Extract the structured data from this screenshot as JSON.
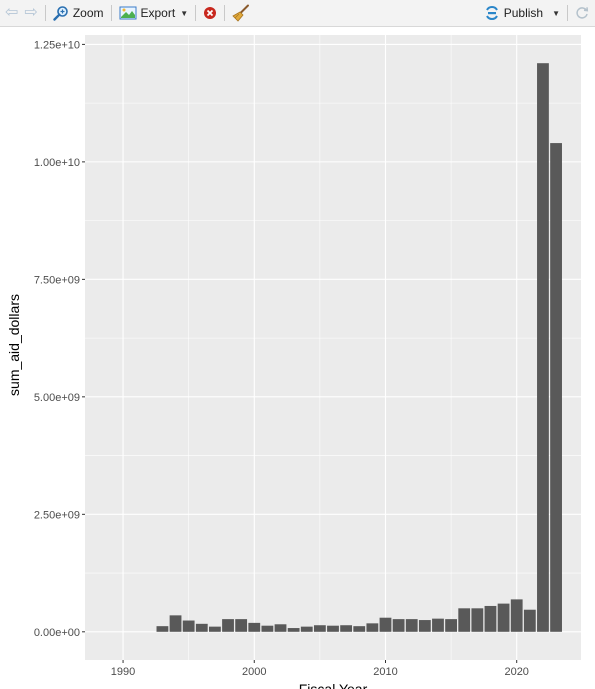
{
  "toolbar": {
    "zoom_label": "Zoom",
    "export_label": "Export",
    "publish_label": "Publish",
    "icons": [
      "arrow-left-icon",
      "arrow-right-icon",
      "zoom-icon",
      "export-icon",
      "remove-plot-icon",
      "broom-icon",
      "publish-icon",
      "refresh-icon"
    ]
  },
  "chart_data": {
    "type": "bar",
    "xlabel": "Fiscal Year",
    "ylabel": "sum_aid_dollars",
    "xlim": [
      1987.1,
      2024.9
    ],
    "ylim": [
      -600000000,
      12700000000
    ],
    "x_ticks": [
      1990,
      2000,
      2010,
      2020
    ],
    "x_tick_labels": [
      "1990",
      "2000",
      "2010",
      "2020"
    ],
    "y_ticks": [
      0,
      2500000000,
      5000000000,
      7500000000,
      10000000000,
      12500000000
    ],
    "y_tick_labels": [
      "0.00e+00",
      "2.50e+09",
      "5.00e+09",
      "7.50e+09",
      "1.00e+10",
      "1.25e+10"
    ],
    "grid": true,
    "colors": {
      "bar": "#595959",
      "panel": "#ebebeb",
      "grid": "#ffffff"
    },
    "x": [
      1993,
      1994,
      1995,
      1996,
      1997,
      1998,
      1999,
      2000,
      2001,
      2002,
      2003,
      2004,
      2005,
      2006,
      2007,
      2008,
      2009,
      2010,
      2011,
      2012,
      2013,
      2014,
      2015,
      2016,
      2017,
      2018,
      2019,
      2020,
      2021,
      2022,
      2023
    ],
    "values": [
      120000000,
      350000000,
      240000000,
      170000000,
      110000000,
      270000000,
      270000000,
      190000000,
      130000000,
      160000000,
      80000000,
      110000000,
      140000000,
      130000000,
      140000000,
      120000000,
      180000000,
      300000000,
      270000000,
      270000000,
      250000000,
      280000000,
      270000000,
      500000000,
      500000000,
      550000000,
      600000000,
      690000000,
      470000000,
      12100000000,
      10400000000
    ]
  }
}
